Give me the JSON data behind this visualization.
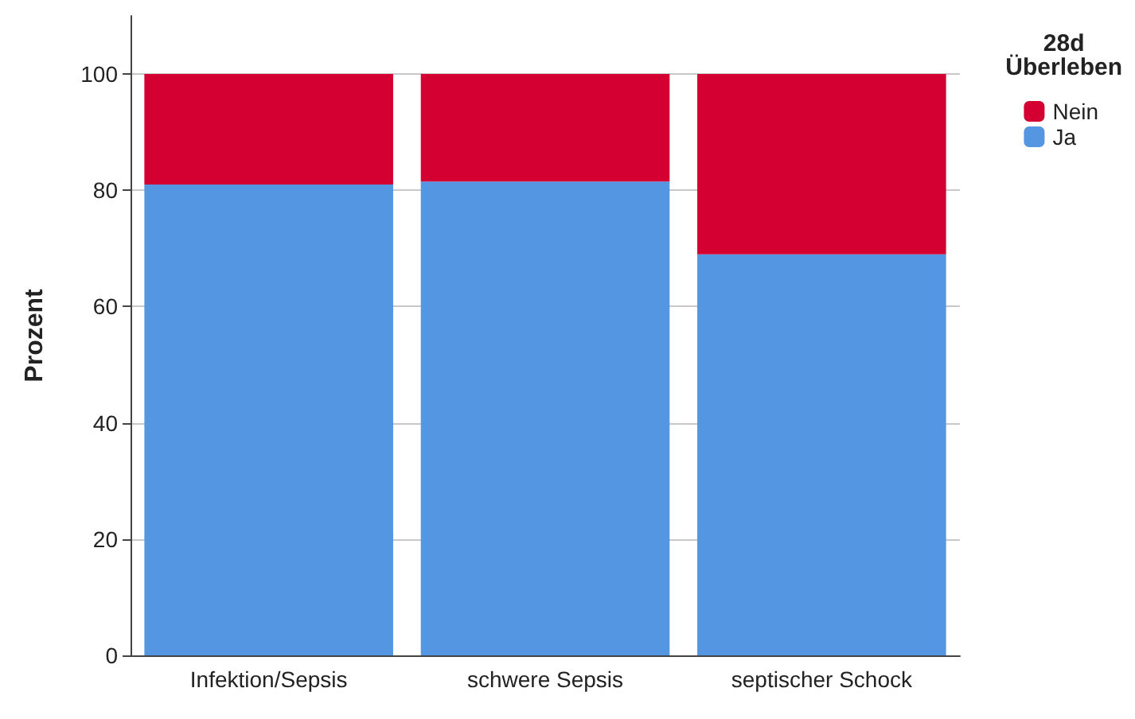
{
  "chart_data": {
    "type": "bar",
    "stacked": true,
    "ylabel": "Prozent",
    "legend_title": "28d\nÜberleben",
    "categories": [
      "Infektion/Sepsis",
      "schwere Sepsis",
      "septischer Schock"
    ],
    "series": [
      {
        "name": "Ja",
        "color": "#5596e3",
        "values": [
          81.0,
          81.5,
          69.0
        ]
      },
      {
        "name": "Nein",
        "color": "#d50032",
        "values": [
          19.0,
          18.5,
          31.0
        ]
      }
    ],
    "ylim": [
      0,
      110
    ],
    "yticks": [
      0,
      20,
      40,
      60,
      80,
      100
    ],
    "grid": "y",
    "legend": "top right"
  }
}
